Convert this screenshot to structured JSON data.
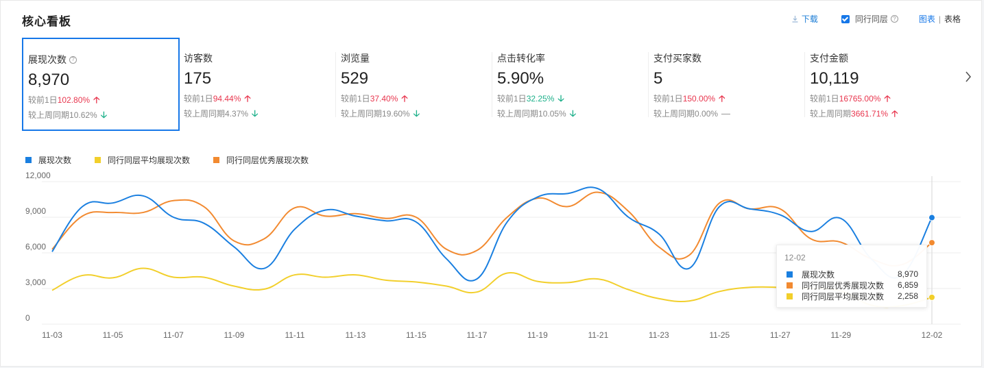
{
  "header": {
    "title": "核心看板",
    "download": "下载",
    "peer_label": "同行同层",
    "view_chart": "图表",
    "view_separator": "|",
    "view_table": "表格"
  },
  "kpis": [
    {
      "label": "展现次数",
      "help": "?",
      "value": "8,970",
      "d_prefix": "较前1日",
      "d_val": "102.80%",
      "d_dir": "up",
      "d_arrow": "🡡",
      "w_prefix": "较上周同期",
      "w_val": "10.62%",
      "w_dir": "down",
      "w_arrow": "🡣",
      "selected": true
    },
    {
      "label": "访客数",
      "value": "175",
      "d_prefix": "较前1日",
      "d_val": "94.44%",
      "d_dir": "up",
      "d_arrow": "🡡",
      "w_prefix": "较上周同期",
      "w_val": "4.37%",
      "w_dir": "down",
      "w_arrow": "🡣"
    },
    {
      "label": "浏览量",
      "value": "529",
      "d_prefix": "较前1日",
      "d_val": "37.40%",
      "d_dir": "up",
      "d_arrow": "🡡",
      "w_prefix": "较上周同期",
      "w_val": "19.60%",
      "w_dir": "down",
      "w_arrow": "🡣"
    },
    {
      "label": "点击转化率",
      "value": "5.90%",
      "d_prefix": "较前1日",
      "d_val": "32.25%",
      "d_dir": "down",
      "d_arrow": "🡣",
      "w_prefix": "较上周同期",
      "w_val": "10.05%",
      "w_dir": "down",
      "w_arrow": "🡣"
    },
    {
      "label": "支付买家数",
      "value": "5",
      "d_prefix": "较前1日",
      "d_val": "150.00%",
      "d_dir": "up",
      "d_arrow": "🡡",
      "w_prefix": "较上周同期",
      "w_val": "0.00%",
      "w_dir": "flat",
      "w_arrow": "—"
    },
    {
      "label": "支付金额",
      "value": "10,119",
      "d_prefix": "较前1日",
      "d_val": "16765.00%",
      "d_dir": "up",
      "d_arrow": "🡡",
      "w_prefix": "较上周同期",
      "w_val": "3661.71%",
      "w_dir": "up",
      "w_arrow": "🡡"
    }
  ],
  "colors": {
    "accent": "#1677e8",
    "up": "#e8364e",
    "down": "#1db08a",
    "series_impressions": "#1a7fe0",
    "series_avg": "#f2cf2b",
    "series_top": "#f28a30"
  },
  "icons": {
    "download": "download-icon",
    "help": "help-circle-icon",
    "next": "chevron-right-icon",
    "checkbox": "checkbox-checked-icon"
  },
  "legend": [
    "展现次数",
    "同行同层平均展现次数",
    "同行同层优秀展现次数"
  ],
  "tooltip": {
    "date": "12-02",
    "rows": [
      {
        "name": "展现次数",
        "value": "8,970"
      },
      {
        "name": "同行同层优秀展现次数",
        "value": "6,859"
      },
      {
        "name": "同行同层平均展现次数",
        "value": "2,258"
      }
    ]
  },
  "chart_data": {
    "type": "line",
    "x": [
      "11-03",
      "11-04",
      "11-05",
      "11-06",
      "11-07",
      "11-08",
      "11-09",
      "11-10",
      "11-11",
      "11-12",
      "11-13",
      "11-14",
      "11-15",
      "11-16",
      "11-17",
      "11-18",
      "11-19",
      "11-20",
      "11-21",
      "11-22",
      "11-23",
      "11-24",
      "11-25",
      "11-26",
      "11-27",
      "11-28",
      "11-29",
      "11-30",
      "12-01",
      "12-02"
    ],
    "x_tick_labels": [
      "11-03",
      "11-05",
      "11-07",
      "11-09",
      "11-11",
      "11-13",
      "11-15",
      "11-17",
      "11-19",
      "11-21",
      "11-23",
      "11-25",
      "11-27",
      "11-29",
      "12-02"
    ],
    "ylim": [
      0,
      12000
    ],
    "y_ticks": [
      0,
      3000,
      6000,
      9000,
      12000
    ],
    "y_tick_labels": [
      "0",
      "3,000",
      "6,000",
      "9,000",
      "12,000"
    ],
    "grid": true,
    "legend_position": "top-left",
    "series": [
      {
        "name": "展现次数",
        "values": [
          6100,
          9900,
          10200,
          10800,
          9000,
          8500,
          6500,
          4700,
          8000,
          9600,
          9100,
          8700,
          8600,
          5500,
          3800,
          8600,
          10700,
          11000,
          11400,
          9000,
          7600,
          4700,
          9900,
          9700,
          9200,
          7800,
          8900,
          5500,
          4100,
          8970
        ]
      },
      {
        "name": "同行同层平均展现次数",
        "values": [
          2850,
          4100,
          3900,
          4700,
          3950,
          3950,
          3200,
          2950,
          4150,
          3950,
          4150,
          3700,
          3550,
          3200,
          2700,
          4300,
          3600,
          3500,
          3800,
          2900,
          2150,
          1950,
          2750,
          3100,
          3100,
          3000,
          2800,
          1600,
          1550,
          2258
        ]
      },
      {
        "name": "同行同层优秀展现次数",
        "values": [
          6300,
          9100,
          9400,
          9400,
          10400,
          9900,
          7000,
          7200,
          9800,
          9100,
          9300,
          8900,
          9000,
          6300,
          6200,
          9000,
          10600,
          9900,
          11100,
          9500,
          6500,
          5800,
          10200,
          9700,
          9700,
          7200,
          6900,
          5500,
          5000,
          6859
        ]
      }
    ],
    "highlight": {
      "x": "12-02"
    }
  }
}
